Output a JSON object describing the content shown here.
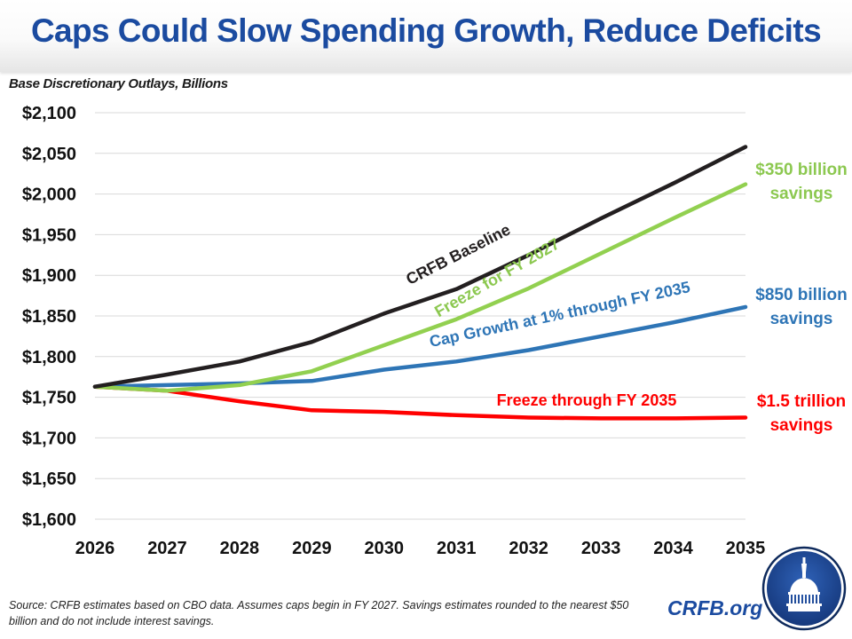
{
  "header": {
    "title": "Caps Could Slow Spending Growth, Reduce Deficits"
  },
  "chart_data": {
    "type": "line",
    "title": "Caps Could Slow Spending Growth, Reduce Deficits",
    "ylabel": "Base Discretionary Outlays, Billions",
    "xlabel": "",
    "x": [
      "2026",
      "2027",
      "2028",
      "2029",
      "2030",
      "2031",
      "2032",
      "2033",
      "2034",
      "2035"
    ],
    "ylim": [
      1600,
      2100
    ],
    "yticks": [
      2100,
      2050,
      2000,
      1950,
      1900,
      1850,
      1800,
      1750,
      1700,
      1650,
      1600
    ],
    "ytick_labels": [
      "$2,100",
      "$2,050",
      "$2,000",
      "$1,950",
      "$1,900",
      "$1,850",
      "$1,800",
      "$1,750",
      "$1,700",
      "$1,650",
      "$1,600"
    ],
    "grid": "horizontal",
    "legend": "none (inline labels)",
    "series": [
      {
        "name": "CRFB Baseline",
        "color": "#231F20",
        "values": [
          1763,
          1778,
          1794,
          1818,
          1853,
          1883,
          1925,
          1970,
          2013,
          2058
        ],
        "label": "CRFB Baseline",
        "end_label": []
      },
      {
        "name": "Freeze for FY 2027",
        "color": "#92D050",
        "values": [
          1763,
          1758,
          1765,
          1782,
          1814,
          1846,
          1884,
          1927,
          1970,
          2012
        ],
        "label": "Freeze for FY 2027",
        "end_label": [
          "$350 billion",
          "savings"
        ]
      },
      {
        "name": "Cap Growth at 1% through FY 2035",
        "color": "#2E75B6",
        "values": [
          1763,
          1765,
          1767,
          1770,
          1784,
          1794,
          1808,
          1825,
          1842,
          1861
        ],
        "label": "Cap Growth at 1% through FY 2035",
        "end_label": [
          "$850 billion",
          "savings"
        ]
      },
      {
        "name": "Freeze through FY 2035",
        "color": "#FF0000",
        "values": [
          1763,
          1758,
          1745,
          1734,
          1732,
          1728,
          1725,
          1724,
          1724,
          1725
        ],
        "label": "Freeze through FY 2035",
        "end_label": [
          "$1.5 trillion",
          "savings"
        ]
      }
    ]
  },
  "footer": {
    "source": "Source: CRFB estimates based on CBO data. Assumes caps begin in FY 2027. Savings estimates rounded to the nearest $50 billion and do not include interest savings.",
    "brand": "CRFB.org",
    "logo_icon": "capitol-dome-icon"
  },
  "colors": {
    "title": "#1B4BA0",
    "brand": "#1B4BA0",
    "logo_ring": "#0E2A5C",
    "logo_fill": "#1E4FA3"
  }
}
